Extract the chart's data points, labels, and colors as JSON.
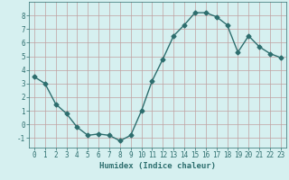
{
  "x": [
    0,
    1,
    2,
    3,
    4,
    5,
    6,
    7,
    8,
    9,
    10,
    11,
    12,
    13,
    14,
    15,
    16,
    17,
    18,
    19,
    20,
    21,
    22,
    23
  ],
  "y": [
    3.5,
    3.0,
    1.5,
    0.8,
    -0.2,
    -0.8,
    -0.7,
    -0.8,
    -1.2,
    -0.8,
    1.0,
    3.2,
    4.8,
    6.5,
    7.3,
    8.2,
    8.2,
    7.9,
    7.3,
    5.3,
    6.5,
    5.7,
    5.2,
    4.9
  ],
  "xlabel": "Humidex (Indice chaleur)",
  "line_color": "#2d6e6e",
  "bg_color": "#d6f0f0",
  "grid_color": "#c0a0a0",
  "xlim": [
    -0.5,
    23.5
  ],
  "ylim": [
    -1.7,
    9.0
  ],
  "yticks": [
    -1,
    0,
    1,
    2,
    3,
    4,
    5,
    6,
    7,
    8
  ],
  "xticks": [
    0,
    1,
    2,
    3,
    4,
    5,
    6,
    7,
    8,
    9,
    10,
    11,
    12,
    13,
    14,
    15,
    16,
    17,
    18,
    19,
    20,
    21,
    22,
    23
  ],
  "marker": "D",
  "marker_size": 2.5,
  "line_width": 1.0
}
